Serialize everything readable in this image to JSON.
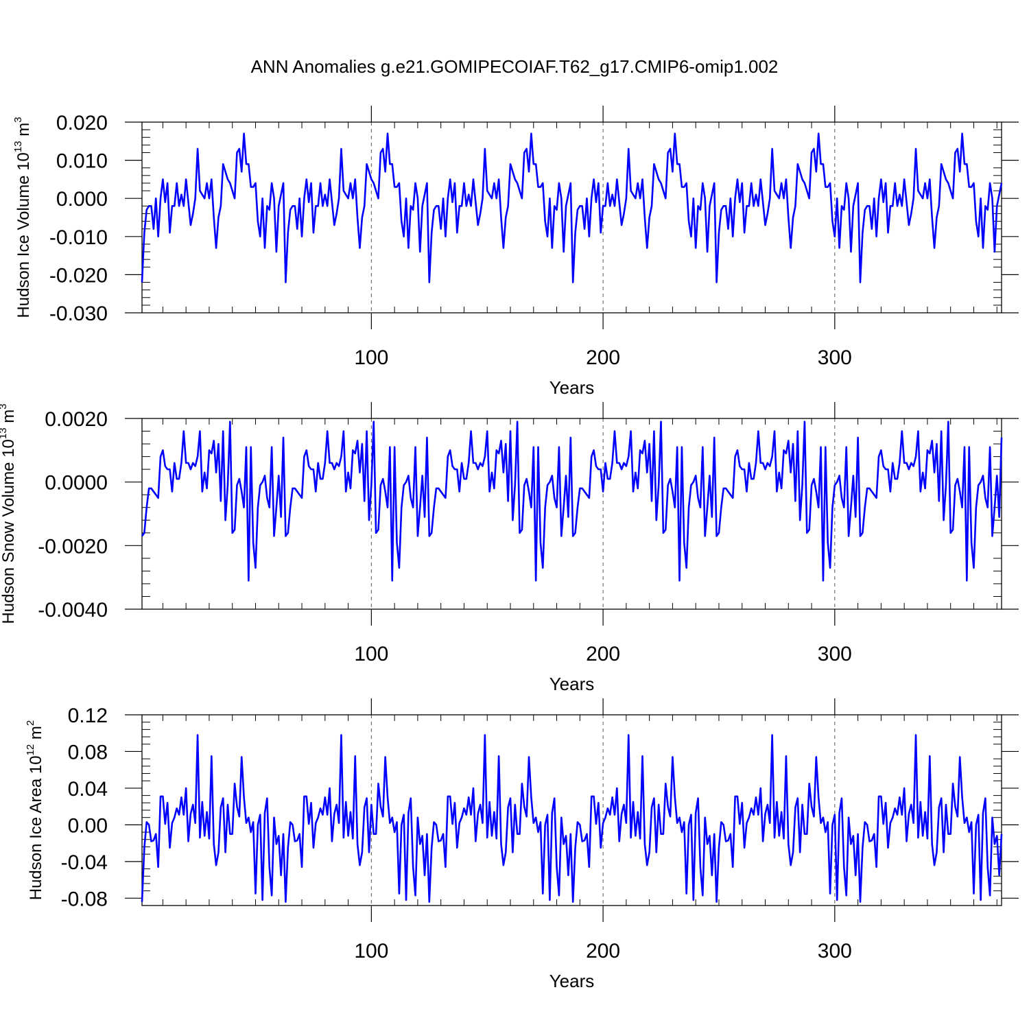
{
  "title": "ANN Anomalies g.e21.GOMIPECOIAF.T62_g17.CMIP6-omip1.002",
  "colors": {
    "line": "#0000ff",
    "axis": "#000000",
    "grid": "#555555"
  },
  "chart_data": [
    {
      "type": "line",
      "name": "ice-volume",
      "ylabel_main": "Hudson Ice Volume 10",
      "ylabel_exp": "13",
      "ylabel_unit": "m",
      "ylabel_unit_exp": "3",
      "xlabel": "Years",
      "xlim": [
        1,
        372
      ],
      "ylim": [
        -0.03,
        0.02
      ],
      "yticks": [
        0.02,
        0.01,
        0.0,
        -0.01,
        -0.02,
        -0.03
      ],
      "ytick_labels": [
        "0.020",
        "0.010",
        "0.000",
        "-0.010",
        "-0.020",
        "-0.030"
      ],
      "xticks": [
        100,
        200,
        300
      ],
      "xtick_labels": [
        "100",
        "200",
        "300"
      ],
      "cycle_start": 1,
      "cycle_length": 62,
      "series": [
        {
          "name": "Hudson Ice Volume",
          "cycle_values": [
            -0.022,
            -0.009,
            -0.003,
            -0.002,
            -0.002,
            -0.008,
            0.0,
            -0.01,
            0.0,
            0.005,
            -0.001,
            0.004,
            -0.009,
            -0.002,
            -0.002,
            0.004,
            -0.002,
            0.001,
            -0.002,
            0.005,
            -0.001,
            -0.007,
            -0.004,
            0.0,
            0.013,
            0.002,
            0.001,
            0.0,
            0.004,
            0.0,
            0.005,
            -0.005,
            -0.013,
            -0.005,
            -0.002,
            0.009,
            0.007,
            0.005,
            0.004,
            0.002,
            0.0,
            0.012,
            0.013,
            0.007,
            0.017,
            0.009,
            0.009,
            0.003,
            0.003,
            0.004,
            -0.006,
            -0.01,
            0.0,
            -0.013,
            -0.002,
            -0.003,
            0.004,
            0.0,
            -0.014,
            -0.002,
            0.001,
            0.004
          ]
        }
      ]
    },
    {
      "type": "line",
      "name": "snow-volume",
      "ylabel_main": "Hudson Snow Volume 10",
      "ylabel_exp": "13",
      "ylabel_unit": "m",
      "ylabel_unit_exp": "3",
      "xlabel": "Years",
      "xlim": [
        1,
        372
      ],
      "ylim": [
        -0.004,
        0.002
      ],
      "yticks": [
        0.002,
        0.0,
        -0.002,
        -0.004
      ],
      "ytick_labels": [
        "0.0020",
        "0.0000",
        "-0.0020",
        "-0.0040"
      ],
      "xticks": [
        100,
        200,
        300
      ],
      "xtick_labels": [
        "100",
        "200",
        "300"
      ],
      "cycle_start": 1,
      "cycle_length": 62,
      "series": [
        {
          "name": "Hudson Snow Volume",
          "cycle_values": [
            -0.0017,
            -0.0016,
            -0.0008,
            -0.0002,
            -0.0002,
            -0.0003,
            -0.0004,
            -0.0005,
            0.0008,
            0.001,
            0.0005,
            0.0004,
            0.0004,
            -0.0003,
            0.0006,
            0.0001,
            0.0001,
            0.0006,
            0.0016,
            0.0006,
            0.0006,
            0.0004,
            0.0006,
            0.0005,
            0.0008,
            0.0016,
            -0.0003,
            0.0003,
            -0.0002,
            0.001,
            0.0009,
            0.0013,
            0.0003,
            0.0012,
            -0.0006,
            0.0016,
            -0.0012,
            -0.0001,
            0.0019,
            -0.0016,
            -0.0015,
            -0.0001,
            0.0001,
            -0.0003,
            -0.0008,
            0.0011,
            -0.0031,
            0.0011,
            -0.0019,
            -0.0027,
            -0.0008,
            -0.0001,
            0.0,
            0.0002,
            -0.0005,
            -0.0008,
            0.0011,
            -0.0017,
            -0.0008,
            0.0002,
            -0.0011,
            0.0014
          ]
        }
      ]
    },
    {
      "type": "line",
      "name": "ice-area",
      "ylabel_main": "Hudson Ice Area 10",
      "ylabel_exp": "12",
      "ylabel_unit": "m",
      "ylabel_unit_exp": "2",
      "xlabel": "Years",
      "xlim": [
        1,
        372
      ],
      "ylim": [
        -0.088,
        0.12
      ],
      "yticks": [
        0.12,
        0.08,
        0.04,
        0.0,
        -0.04,
        -0.08
      ],
      "ytick_labels": [
        "0.12",
        "0.08",
        "0.04",
        "0.00",
        "-0.04",
        "-0.08"
      ],
      "xticks": [
        100,
        200,
        300
      ],
      "xtick_labels": [
        "100",
        "200",
        "300"
      ],
      "cycle_start": 1,
      "cycle_length": 62,
      "series": [
        {
          "name": "Hudson Ice Area",
          "cycle_values": [
            -0.084,
            -0.025,
            0.003,
            0.0,
            -0.018,
            -0.017,
            -0.01,
            -0.046,
            0.031,
            0.031,
            0.001,
            0.024,
            -0.025,
            0.002,
            0.008,
            0.018,
            0.011,
            0.03,
            0.011,
            0.04,
            -0.018,
            0.012,
            0.022,
            0.002,
            0.098,
            -0.014,
            0.025,
            -0.012,
            0.014,
            -0.015,
            0.075,
            -0.021,
            -0.044,
            -0.03,
            0.019,
            0.029,
            -0.03,
            0.022,
            -0.01,
            -0.01,
            0.045,
            0.02,
            0.009,
            0.074,
            0.03,
            0.002,
            0.008,
            -0.008,
            0.003,
            -0.075,
            0.0,
            0.011,
            -0.082,
            0.013,
            0.029,
            -0.046,
            -0.077,
            0.008,
            -0.021,
            -0.012,
            -0.055,
            -0.01
          ]
        }
      ]
    }
  ]
}
